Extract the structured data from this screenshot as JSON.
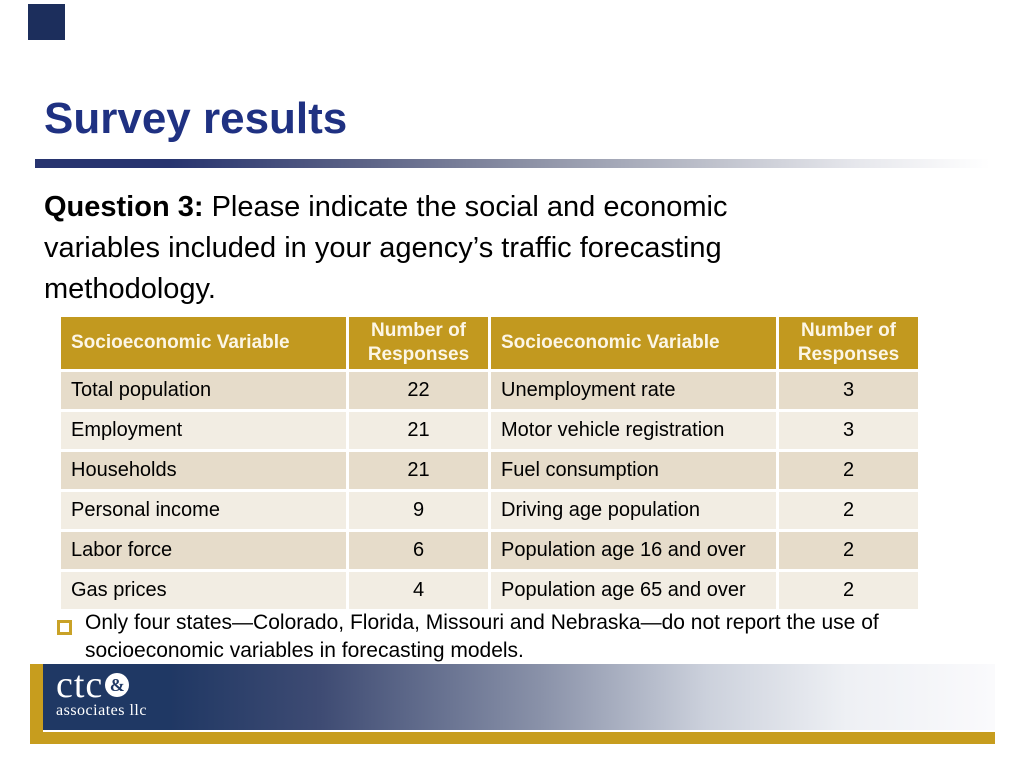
{
  "title": "Survey results",
  "question": {
    "label": "Question 3:",
    "line1": " Please indicate the social and economic",
    "line2": "variables included in your agency’s traffic forecasting",
    "line3": "methodology."
  },
  "table": {
    "headers": [
      "Socioeconomic Variable",
      "Number of Responses",
      "Socioeconomic Variable",
      "Number of Responses"
    ],
    "rows": [
      [
        "Total population",
        "22",
        "Unemployment rate",
        "3"
      ],
      [
        "Employment",
        "21",
        "Motor vehicle registration",
        "3"
      ],
      [
        "Households",
        "21",
        "Fuel consumption",
        "2"
      ],
      [
        "Personal income",
        "9",
        "Driving age population",
        "2"
      ],
      [
        "Labor force",
        "6",
        "Population age 16 and over",
        "2"
      ],
      [
        "Gas prices",
        "4",
        "Population age 65 and over",
        "2"
      ]
    ]
  },
  "note": {
    "line1": "Only four states—Colorado, Florida, Missouri and Nebraska—do not report the use of",
    "line2": "socioeconomic variables in forecasting models."
  },
  "logo": {
    "name": "ctc",
    "ampersand": "&",
    "subtitle": "associates llc"
  },
  "colors": {
    "title_text": "#1f3182",
    "corner_square": "#1c2e5c",
    "divider_start": "#27346f",
    "table_header_bg": "#c2991f",
    "table_header_text": "#fcf6e6",
    "row_dark_tan": "#e6dcca",
    "row_light_tan": "#f2ede3",
    "footer_navy": "#1f3864",
    "footer_gold": "#c79d1e",
    "bullet_gold": "#c9a227"
  }
}
